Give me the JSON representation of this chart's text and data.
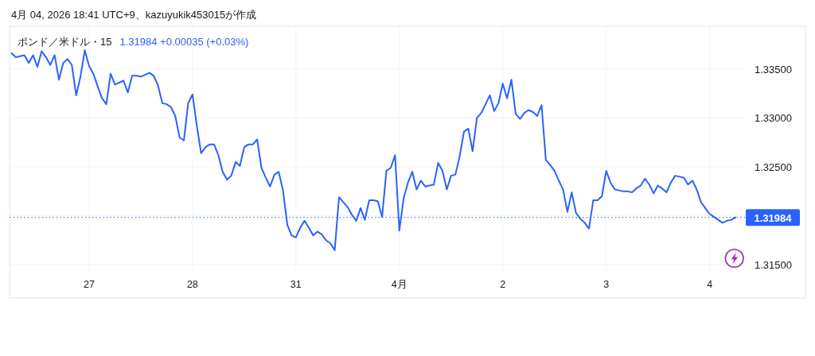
{
  "chart_data": {
    "type": "line",
    "title": "ポンド／米ドル・15",
    "annotations": [
      "4月 04, 2026 18:41 UTC+9、kazuyukik453015が作成",
      "1.31984 +0.00035 (+0.03%)"
    ],
    "categories": [
      null,
      null,
      null,
      null,
      null,
      null,
      null,
      null,
      null,
      null,
      null,
      null,
      null,
      null,
      null,
      null,
      null,
      null,
      "27",
      null,
      null,
      null,
      null,
      null,
      null,
      null,
      null,
      null,
      null,
      null,
      null,
      null,
      null,
      null,
      null,
      null,
      null,
      null,
      null,
      null,
      null,
      null,
      "28",
      null,
      null,
      null,
      null,
      null,
      null,
      null,
      null,
      null,
      null,
      null,
      null,
      null,
      null,
      null,
      null,
      null,
      null,
      null,
      null,
      null,
      null,
      null,
      "31",
      null,
      null,
      null,
      null,
      null,
      null,
      null,
      null,
      null,
      null,
      null,
      null,
      null,
      null,
      null,
      null,
      null,
      null,
      null,
      null,
      null,
      null,
      null,
      "4月",
      null,
      null,
      null,
      null,
      null,
      null,
      null,
      null,
      null,
      null,
      null,
      null,
      null,
      null,
      null,
      null,
      null,
      null,
      null,
      null,
      null,
      null,
      null,
      "2",
      null,
      null,
      null,
      null,
      null,
      null,
      null,
      null,
      null,
      null,
      null,
      null,
      null,
      null,
      null,
      null,
      null,
      null,
      null,
      null,
      null,
      null,
      null,
      "3",
      null,
      null,
      null,
      null,
      null,
      null,
      null,
      null,
      null,
      null,
      null,
      null,
      null,
      null,
      null,
      null,
      null,
      null,
      null,
      null,
      null,
      null,
      null,
      "4",
      null,
      null,
      null,
      null,
      null,
      null
    ],
    "series": [
      {
        "color": "#2962ff",
        "values": [
          1.3366,
          1.3362,
          1.3363,
          1.3364,
          1.3356,
          1.3364,
          1.3352,
          1.3368,
          1.3362,
          1.3354,
          1.3364,
          1.3339,
          1.3356,
          1.336,
          1.3354,
          1.3323,
          1.3342,
          1.3369,
          1.3353,
          1.3345,
          1.3332,
          1.332,
          1.3314,
          1.3345,
          1.3334,
          1.3336,
          1.3338,
          1.3326,
          1.3343,
          1.3343,
          1.3342,
          1.3344,
          1.3346,
          1.3343,
          1.3333,
          1.3315,
          1.3314,
          1.3311,
          1.3302,
          1.328,
          1.3277,
          1.3315,
          1.3324,
          1.3292,
          1.3264,
          1.327,
          1.3273,
          1.3273,
          1.3262,
          1.3245,
          1.3237,
          1.3241,
          1.3255,
          1.3251,
          1.327,
          1.3273,
          1.3273,
          1.3278,
          1.3249,
          1.3239,
          1.323,
          1.3242,
          1.3245,
          1.3226,
          1.3191,
          1.318,
          1.3178,
          1.3188,
          1.3195,
          1.3188,
          1.318,
          1.3184,
          1.3181,
          1.3175,
          1.3172,
          1.3165,
          1.3219,
          1.3214,
          1.3209,
          1.3201,
          1.3195,
          1.3208,
          1.3196,
          1.3216,
          1.3216,
          1.3215,
          1.3199,
          1.3246,
          1.3249,
          1.3262,
          1.3185,
          1.3218,
          1.3234,
          1.3245,
          1.3227,
          1.3236,
          1.323,
          1.3231,
          1.3232,
          1.3254,
          1.3246,
          1.3227,
          1.3241,
          1.3242,
          1.3261,
          1.3286,
          1.3289,
          1.3266,
          1.33,
          1.3305,
          1.3314,
          1.3323,
          1.3307,
          1.3315,
          1.3335,
          1.332,
          1.3339,
          1.3304,
          1.3299,
          1.3305,
          1.3308,
          1.3306,
          1.3302,
          1.3313,
          1.3257,
          1.3252,
          1.3246,
          1.3236,
          1.3227,
          1.3204,
          1.3224,
          1.3203,
          1.3197,
          1.3193,
          1.3187,
          1.3216,
          1.3216,
          1.322,
          1.3246,
          1.3234,
          1.3227,
          1.3226,
          1.3225,
          1.3225,
          1.3224,
          1.3228,
          1.3231,
          1.3238,
          1.3232,
          1.3223,
          1.3231,
          1.3228,
          1.3224,
          1.3234,
          1.3241,
          1.324,
          1.3239,
          1.3232,
          1.3236,
          1.3227,
          1.3214,
          1.3208,
          1.3202,
          1.3199,
          1.3196,
          1.3193,
          1.3195,
          1.3196,
          1.31984
        ]
      }
    ],
    "ylim": [
      1.31446,
      1.33938
    ],
    "yticks": [
      {
        "value": 1.315,
        "label": "1.31500"
      },
      {
        "value": 1.32,
        "label": null
      },
      {
        "value": 1.325,
        "label": "1.32500"
      },
      {
        "value": 1.33,
        "label": "1.33000"
      },
      {
        "value": 1.335,
        "label": "1.33500"
      }
    ],
    "grid": true,
    "ref_lines": [
      {
        "axis": "y",
        "value": 1.31984,
        "label": "1.31984",
        "color": "#2962ff",
        "line_style": "dotted"
      }
    ]
  }
}
